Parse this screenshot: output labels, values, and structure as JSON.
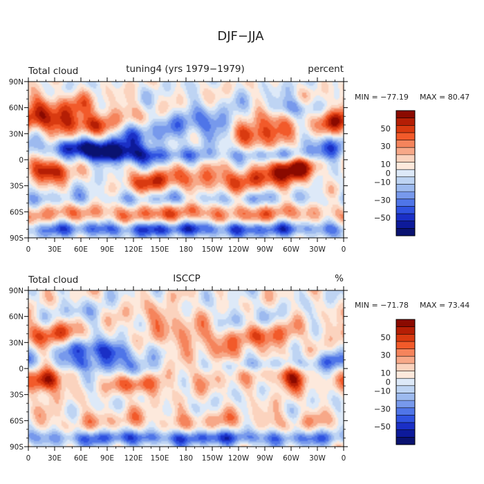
{
  "figure_title": "DJF−JJA",
  "colorbar_ticks": [
    "50",
    "30",
    "10",
    "0",
    "−10",
    "−30",
    "−50"
  ],
  "colorbar_colors": [
    "#8b0a00",
    "#b51e05",
    "#d93a10",
    "#f25a2a",
    "#f5845c",
    "#f7a888",
    "#fbd3be",
    "#fde9dc",
    "#dde9f8",
    "#bed4f3",
    "#9dbaef",
    "#7799ec",
    "#4f75e8",
    "#2f52e0",
    "#1a2fc6",
    "#0d1a9a",
    "#0a1270"
  ],
  "chart_data": [
    {
      "type": "heatmap",
      "name": "model",
      "title_left": "Total cloud",
      "title_center": "tuning4 (yrs 1979−1979)",
      "title_right": "percent",
      "min_label": "MIN = −77.19",
      "max_label": "MAX =  80.47",
      "min": -77.19,
      "max": 80.47,
      "x_tick_labels": [
        "0",
        "30E",
        "60E",
        "90E",
        "120E",
        "150E",
        "180",
        "150W",
        "120W",
        "90W",
        "60W",
        "30W",
        "0"
      ],
      "y_tick_labels": [
        "90N",
        "60N",
        "30N",
        "0",
        "30S",
        "60S",
        "90S"
      ],
      "xlim": [
        0,
        360
      ],
      "ylim": [
        -90,
        90
      ],
      "colorbar_range": [
        -70,
        70
      ],
      "bias": 3,
      "features": [
        {
          "lon": 30,
          "lat": 45,
          "sx": 30,
          "sy": 12,
          "a": 45
        },
        {
          "lon": 70,
          "lat": 40,
          "sx": 18,
          "sy": 8,
          "a": 28
        },
        {
          "lon": 30,
          "lat": 65,
          "sx": 40,
          "sy": 10,
          "a": 22
        },
        {
          "lon": 90,
          "lat": 10,
          "sx": 30,
          "sy": 9,
          "a": -55
        },
        {
          "lon": 50,
          "lat": 15,
          "sx": 22,
          "sy": 7,
          "a": -40
        },
        {
          "lon": 125,
          "lat": 28,
          "sx": 18,
          "sy": 10,
          "a": -30
        },
        {
          "lon": 120,
          "lat": 5,
          "sx": 25,
          "sy": 8,
          "a": -25
        },
        {
          "lon": 25,
          "lat": -12,
          "sx": 15,
          "sy": 10,
          "a": 65
        },
        {
          "lon": 300,
          "lat": -10,
          "sx": 18,
          "sy": 12,
          "a": 70
        },
        {
          "lon": 135,
          "lat": -25,
          "sx": 18,
          "sy": 9,
          "a": 35
        },
        {
          "lon": 255,
          "lat": 30,
          "sx": 20,
          "sy": 10,
          "a": 55
        },
        {
          "lon": 280,
          "lat": 45,
          "sx": 20,
          "sy": 12,
          "a": 38
        },
        {
          "lon": 300,
          "lat": 60,
          "sx": 25,
          "sy": 8,
          "a": -35
        },
        {
          "lon": 205,
          "lat": 40,
          "sx": 40,
          "sy": 12,
          "a": -35
        },
        {
          "lon": 190,
          "lat": 5,
          "sx": 60,
          "sy": 6,
          "a": -22
        },
        {
          "lon": 300,
          "lat": 5,
          "sx": 35,
          "sy": 6,
          "a": -30
        },
        {
          "lon": 195,
          "lat": -22,
          "sx": 40,
          "sy": 10,
          "a": 32
        },
        {
          "lon": 255,
          "lat": -22,
          "sx": 25,
          "sy": 10,
          "a": 28
        },
        {
          "lon": 180,
          "lat": -62,
          "sx": 180,
          "sy": 8,
          "a": 32
        },
        {
          "lon": 180,
          "lat": -80,
          "sx": 180,
          "sy": 6,
          "a": -45
        },
        {
          "lon": 180,
          "lat": -45,
          "sx": 180,
          "sy": 6,
          "a": -18
        },
        {
          "lon": 345,
          "lat": 15,
          "sx": 15,
          "sy": 8,
          "a": -38
        },
        {
          "lon": 345,
          "lat": 45,
          "sx": 15,
          "sy": 10,
          "a": 30
        },
        {
          "lon": 110,
          "lat": 50,
          "sx": 25,
          "sy": 10,
          "a": 18
        }
      ]
    },
    {
      "type": "heatmap",
      "name": "isccp",
      "title_left": "Total cloud",
      "title_center": "ISCCP",
      "title_right": "%",
      "min_label": "MIN = −71.78",
      "max_label": "MAX =  73.44",
      "min": -71.78,
      "max": 73.44,
      "x_tick_labels": [
        "0",
        "30E",
        "60E",
        "90E",
        "120E",
        "150E",
        "180",
        "150W",
        "120W",
        "90W",
        "60W",
        "30W",
        "0"
      ],
      "y_tick_labels": [
        "90N",
        "60N",
        "30N",
        "0",
        "30S",
        "60S",
        "90S"
      ],
      "xlim": [
        0,
        360
      ],
      "ylim": [
        -90,
        90
      ],
      "colorbar_range": [
        -70,
        70
      ],
      "bias": 5,
      "features": [
        {
          "lon": 25,
          "lat": 40,
          "sx": 25,
          "sy": 10,
          "a": 38
        },
        {
          "lon": 20,
          "lat": -15,
          "sx": 12,
          "sy": 10,
          "a": 68
        },
        {
          "lon": 80,
          "lat": 20,
          "sx": 28,
          "sy": 9,
          "a": -55
        },
        {
          "lon": 60,
          "lat": 5,
          "sx": 20,
          "sy": 6,
          "a": -30
        },
        {
          "lon": 125,
          "lat": 0,
          "sx": 20,
          "sy": 8,
          "a": -30
        },
        {
          "lon": 125,
          "lat": -20,
          "sx": 15,
          "sy": 8,
          "a": 40
        },
        {
          "lon": 300,
          "lat": -10,
          "sx": 15,
          "sy": 10,
          "a": 50
        },
        {
          "lon": 275,
          "lat": 40,
          "sx": 25,
          "sy": 12,
          "a": 32
        },
        {
          "lon": 250,
          "lat": 55,
          "sx": 30,
          "sy": 10,
          "a": -20
        },
        {
          "lon": 200,
          "lat": 35,
          "sx": 40,
          "sy": 12,
          "a": 25
        },
        {
          "lon": 270,
          "lat": 5,
          "sx": 40,
          "sy": 6,
          "a": -30
        },
        {
          "lon": 180,
          "lat": -10,
          "sx": 60,
          "sy": 10,
          "a": 14
        },
        {
          "lon": 180,
          "lat": -80,
          "sx": 180,
          "sy": 6,
          "a": -42
        },
        {
          "lon": 180,
          "lat": -60,
          "sx": 180,
          "sy": 8,
          "a": 16
        },
        {
          "lon": 345,
          "lat": 10,
          "sx": 15,
          "sy": 8,
          "a": -32
        },
        {
          "lon": 150,
          "lat": 60,
          "sx": 30,
          "sy": 10,
          "a": 20
        },
        {
          "lon": 60,
          "lat": 65,
          "sx": 25,
          "sy": 8,
          "a": -15
        },
        {
          "lon": 240,
          "lat": 10,
          "sx": 20,
          "sy": 8,
          "a": 20
        }
      ]
    }
  ]
}
